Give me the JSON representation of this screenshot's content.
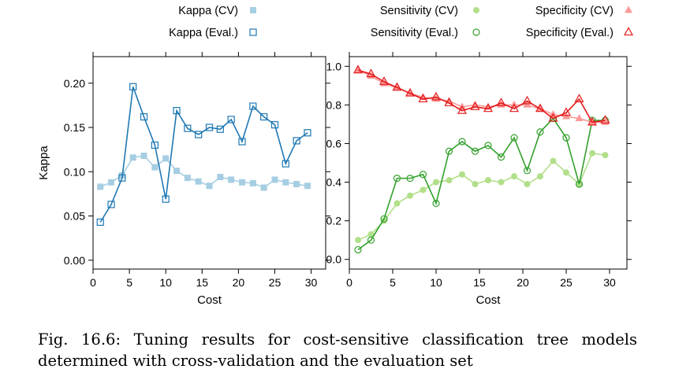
{
  "chart_data": [
    {
      "type": "line",
      "xlabel": "Cost",
      "ylabel": "Kappa",
      "xlim": [
        0,
        32
      ],
      "ylim": [
        -0.01,
        0.23
      ],
      "xticks": [
        0,
        5,
        10,
        15,
        20,
        25,
        30
      ],
      "yticks": [
        0.0,
        0.05,
        0.1,
        0.15,
        0.2
      ],
      "ytick_labels": [
        "0.00",
        "0.05",
        "0.10",
        "0.15",
        "0.20"
      ],
      "grid": false,
      "legend_position": "top",
      "x": [
        1,
        2.5,
        4,
        5.5,
        7,
        8.5,
        10,
        11.5,
        13,
        14.5,
        16,
        17.5,
        19,
        20.5,
        22,
        23.5,
        25,
        26.5,
        28,
        29.5
      ],
      "series": [
        {
          "name": "Kappa (CV)",
          "marker": "square-filled",
          "color": "#a6cee3",
          "values": [
            0.083,
            0.088,
            0.096,
            0.116,
            0.118,
            0.105,
            0.115,
            0.101,
            0.093,
            0.089,
            0.084,
            0.094,
            0.091,
            0.088,
            0.087,
            0.082,
            0.091,
            0.088,
            0.086,
            0.084
          ]
        },
        {
          "name": "Kappa (Eval.)",
          "marker": "square-open",
          "color": "#1f78b4",
          "values": [
            0.043,
            0.063,
            0.093,
            0.196,
            0.162,
            0.13,
            0.069,
            0.169,
            0.149,
            0.142,
            0.15,
            0.148,
            0.159,
            0.134,
            0.174,
            0.162,
            0.153,
            0.109,
            0.135,
            0.144
          ]
        }
      ]
    },
    {
      "type": "line",
      "xlabel": "Cost",
      "ylabel": "",
      "xlim": [
        0,
        32
      ],
      "ylim": [
        -0.05,
        1.05
      ],
      "xticks": [
        0,
        5,
        10,
        15,
        20,
        25,
        30
      ],
      "yticks": [
        0.0,
        0.2,
        0.4,
        0.6,
        0.8,
        1.0
      ],
      "ytick_labels": [
        "0.0",
        "0.2",
        "0.4",
        "0.6",
        "0.8",
        "1.0"
      ],
      "grid": false,
      "legend_position": "top",
      "x": [
        1,
        2.5,
        4,
        5.5,
        7,
        8.5,
        10,
        11.5,
        13,
        14.5,
        16,
        17.5,
        19,
        20.5,
        22,
        23.5,
        25,
        26.5,
        28,
        29.5
      ],
      "series": [
        {
          "name": "Sensitivity (CV)",
          "marker": "circle-filled",
          "color": "#b2df8a",
          "values": [
            0.1,
            0.13,
            0.2,
            0.29,
            0.33,
            0.36,
            0.4,
            0.41,
            0.44,
            0.39,
            0.41,
            0.4,
            0.43,
            0.39,
            0.43,
            0.51,
            0.45,
            0.39,
            0.55,
            0.54
          ]
        },
        {
          "name": "Sensitivity (Eval.)",
          "marker": "circle-open",
          "color": "#33a02c",
          "values": [
            0.05,
            0.1,
            0.21,
            0.42,
            0.42,
            0.44,
            0.29,
            0.56,
            0.61,
            0.56,
            0.59,
            0.53,
            0.63,
            0.46,
            0.66,
            0.73,
            0.63,
            0.39,
            0.72,
            0.72
          ]
        },
        {
          "name": "Specificity (CV)",
          "marker": "triangle-filled",
          "color": "#fb9a99",
          "values": [
            0.98,
            0.95,
            0.91,
            0.89,
            0.86,
            0.84,
            0.83,
            0.82,
            0.79,
            0.8,
            0.79,
            0.8,
            0.8,
            0.8,
            0.78,
            0.75,
            0.74,
            0.73,
            0.71,
            0.71
          ]
        },
        {
          "name": "Specificity (Eval.)",
          "marker": "triangle-open",
          "color": "#e31a1c",
          "values": [
            0.98,
            0.96,
            0.92,
            0.89,
            0.86,
            0.83,
            0.84,
            0.81,
            0.77,
            0.79,
            0.78,
            0.81,
            0.78,
            0.82,
            0.78,
            0.73,
            0.76,
            0.83,
            0.71,
            0.72
          ]
        }
      ]
    }
  ],
  "caption": "Fig. 16.6: Tuning results for cost-sensitive classification tree models determined with cross-validation and the evaluation set"
}
